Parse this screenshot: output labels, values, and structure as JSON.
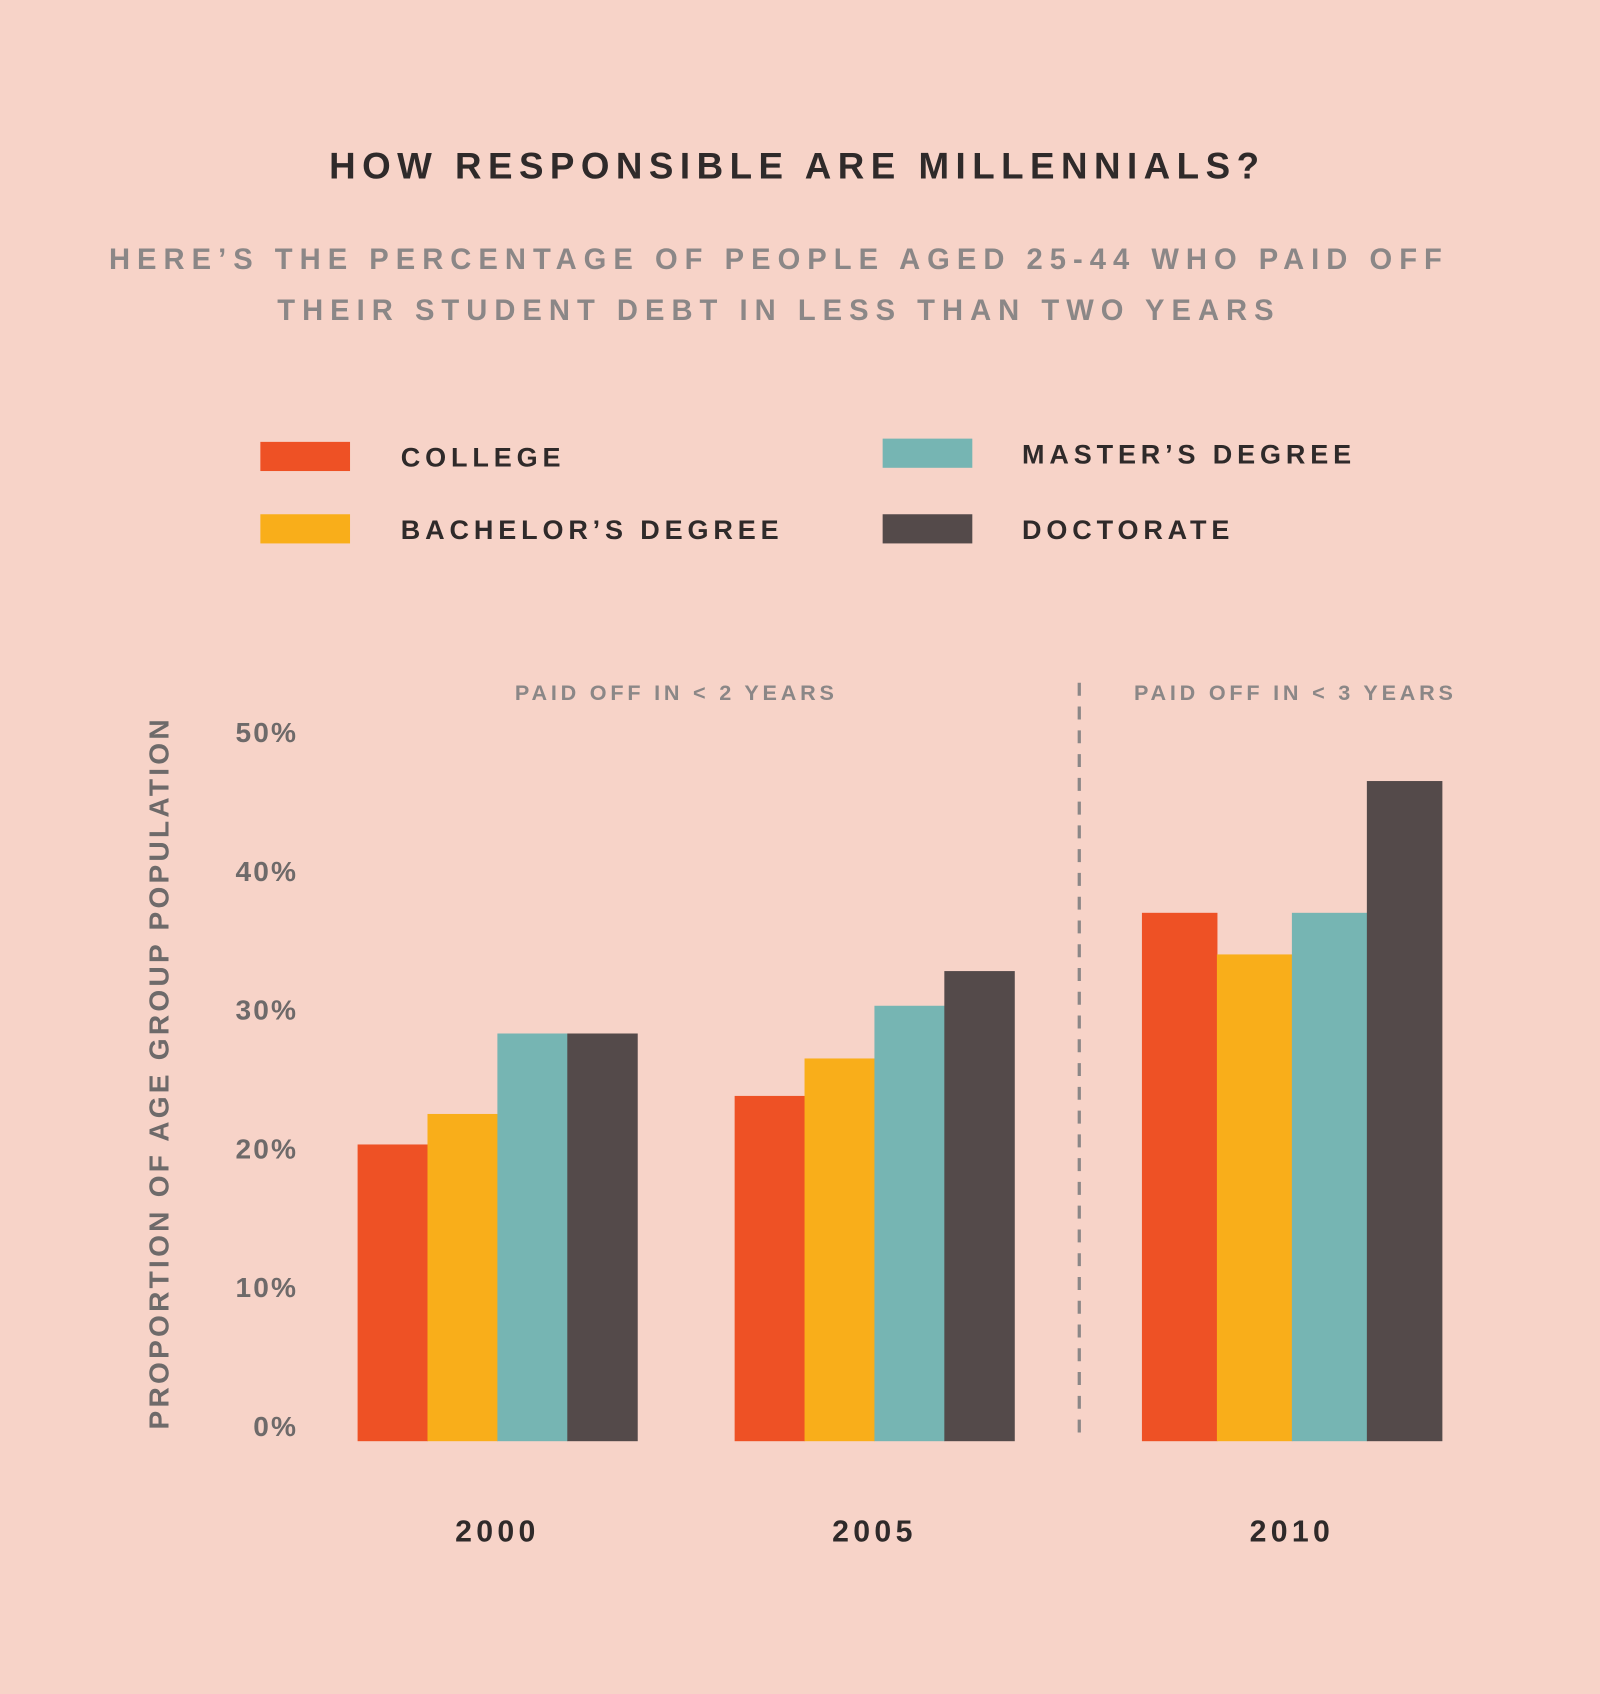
{
  "colors": {
    "background": "#f7d3c8",
    "college": "#ee5125",
    "bachelor": "#f9ae1a",
    "master": "#76b5b3",
    "doctorate": "#544a4a"
  },
  "chart_data": {
    "type": "bar",
    "title": "HOW RESPONSIBLE ARE MILLENNIALS?",
    "subtitle": [
      "HERE’S THE PERCENTAGE OF PEOPLE AGED 25-44 WHO PAID OFF",
      "THEIR STUDENT DEBT IN LESS THAN TWO YEARS"
    ],
    "xlabel": "",
    "ylabel": "PROPORTION OF AGE GROUP POPULATION",
    "ylim": [
      0,
      50
    ],
    "yticks": [
      "0%",
      "10%",
      "20%",
      "30%",
      "40%",
      "50%"
    ],
    "categories": [
      "2000",
      "2005",
      "2010"
    ],
    "annotations": [
      "PAID OFF IN < 2 YEARS",
      "PAID OFF IN < 3 YEARS"
    ],
    "legend_position": "top",
    "grid": false,
    "series": [
      {
        "name": "COLLEGE",
        "color": "#ee5125",
        "values": [
          20.3,
          23.8,
          37.0
        ]
      },
      {
        "name": "BACHELOR’S DEGREE",
        "color": "#f9ae1a",
        "values": [
          22.5,
          26.5,
          34.0
        ]
      },
      {
        "name": "MASTER’S DEGREE",
        "color": "#76b5b3",
        "values": [
          28.3,
          30.3,
          37.0
        ]
      },
      {
        "name": "DOCTORATE",
        "color": "#544a4a",
        "values": [
          28.3,
          32.8,
          46.5
        ]
      }
    ]
  }
}
